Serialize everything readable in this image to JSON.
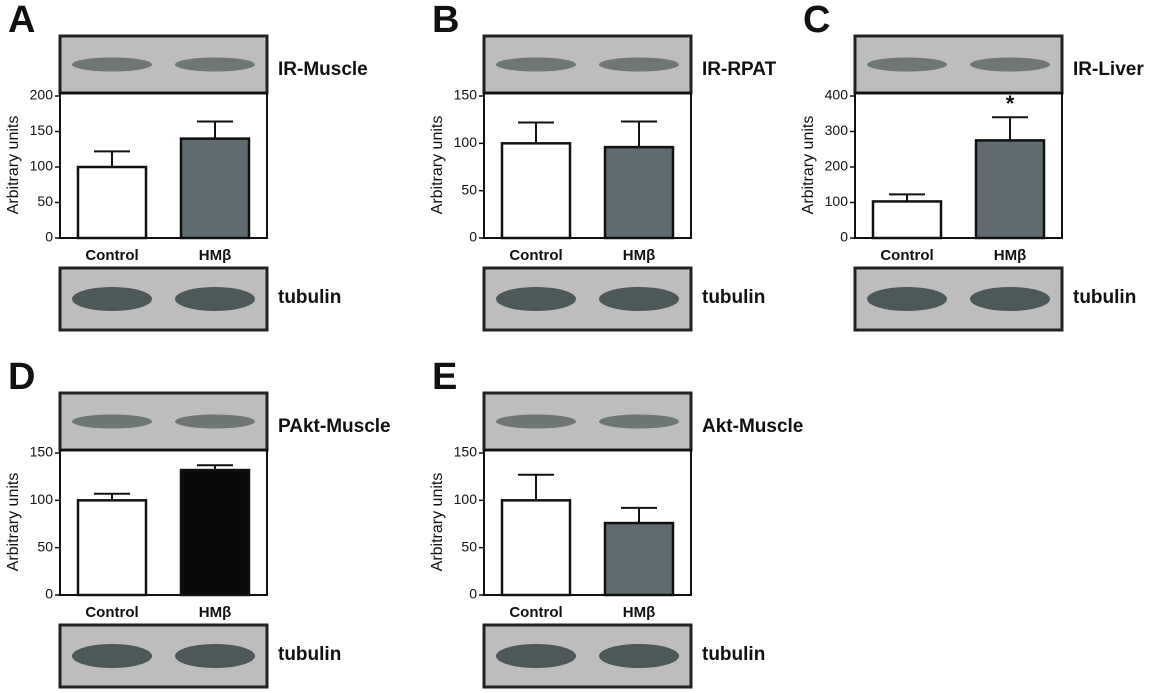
{
  "chart_data": [
    {
      "type": "bar",
      "panel": "A",
      "blot_label": "IR-Muscle",
      "loading_label": "tubulin",
      "ylabel": "Arbitrary units",
      "categories": [
        "Control",
        "HMβ"
      ],
      "values": [
        100,
        140
      ],
      "errors": [
        22,
        24
      ],
      "colors": [
        "#ffffff",
        "#5f6b6e"
      ],
      "ylim": [
        0,
        200
      ],
      "yticks": [
        0,
        50,
        100,
        150,
        200
      ]
    },
    {
      "type": "bar",
      "panel": "B",
      "blot_label": "IR-RPAT",
      "loading_label": "tubulin",
      "ylabel": "Arbitrary units",
      "categories": [
        "Control",
        "HMβ"
      ],
      "values": [
        100,
        96
      ],
      "errors": [
        22,
        27
      ],
      "colors": [
        "#ffffff",
        "#5f6b6e"
      ],
      "ylim": [
        0,
        150
      ],
      "yticks": [
        0,
        50,
        100,
        150
      ]
    },
    {
      "type": "bar",
      "panel": "C",
      "blot_label": "IR-Liver",
      "loading_label": "tubulin",
      "ylabel": "Arbitrary units",
      "categories": [
        "Control",
        "HMβ"
      ],
      "values": [
        103,
        275
      ],
      "errors": [
        20,
        65
      ],
      "colors": [
        "#ffffff",
        "#5f6b6e"
      ],
      "ylim": [
        0,
        400
      ],
      "yticks": [
        0,
        100,
        200,
        300,
        400
      ],
      "annotation": "*"
    },
    {
      "type": "bar",
      "panel": "D",
      "blot_label": "PAkt-Muscle",
      "loading_label": "tubulin",
      "ylabel": "Arbitrary units",
      "categories": [
        "Control",
        "HMβ"
      ],
      "values": [
        100,
        132
      ],
      "errors": [
        7,
        5
      ],
      "colors": [
        "#ffffff",
        "#0a0a0a"
      ],
      "ylim": [
        0,
        150
      ],
      "yticks": [
        0,
        50,
        100,
        150
      ]
    },
    {
      "type": "bar",
      "panel": "E",
      "blot_label": "Akt-Muscle",
      "loading_label": "tubulin",
      "ylabel": "Arbitrary units",
      "categories": [
        "Control",
        "HMβ"
      ],
      "values": [
        100,
        76
      ],
      "errors": [
        27,
        16
      ],
      "colors": [
        "#ffffff",
        "#5f6b6e"
      ],
      "ylim": [
        0,
        150
      ],
      "yticks": [
        0,
        50,
        100,
        150
      ]
    }
  ]
}
